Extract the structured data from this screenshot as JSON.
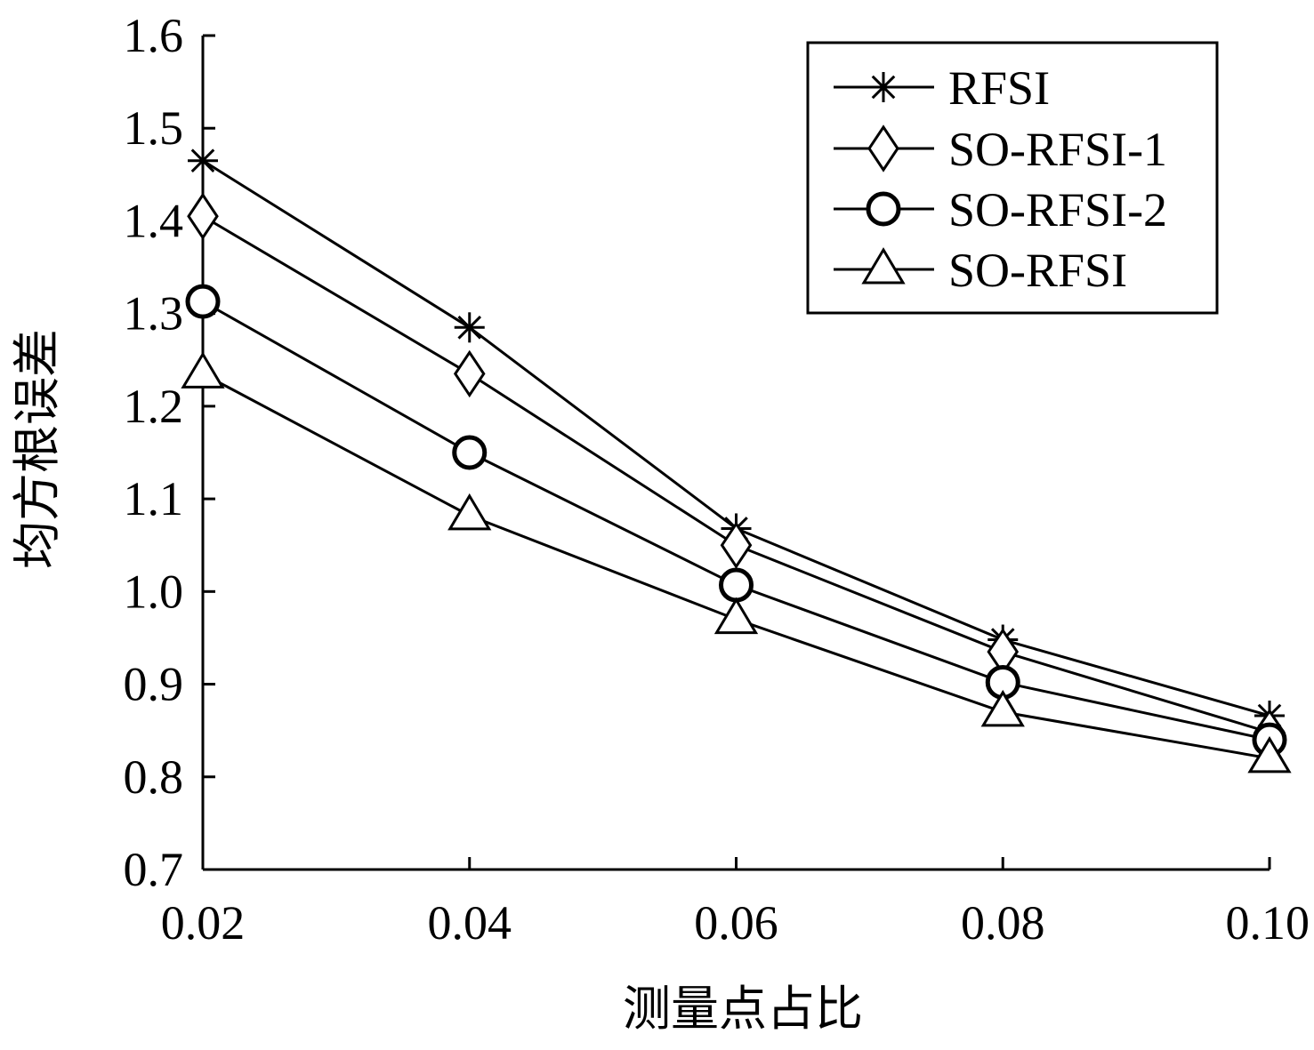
{
  "chart_data": {
    "type": "line",
    "title": "",
    "xlabel": "测量点占比",
    "ylabel": "均方根误差",
    "x": [
      0.02,
      0.04,
      0.06,
      0.08,
      0.1
    ],
    "x_tick_labels": [
      "0.02",
      "0.04",
      "0.06",
      "0.08",
      "0.10"
    ],
    "y_tick_labels": [
      "0.7",
      "0.8",
      "0.9",
      "1.0",
      "1.1",
      "1.2",
      "1.3",
      "1.4",
      "1.5",
      "1.6"
    ],
    "xlim": [
      0.02,
      0.1
    ],
    "ylim": [
      0.7,
      1.6
    ],
    "grid": false,
    "legend_position": "top-right",
    "series": [
      {
        "name": "RFSI",
        "marker": "asterisk",
        "values": [
          1.465,
          1.285,
          1.068,
          0.948,
          0.866
        ]
      },
      {
        "name": "SO-RFSI-1",
        "marker": "diamond",
        "values": [
          1.405,
          1.235,
          1.05,
          0.935,
          0.848
        ]
      },
      {
        "name": "SO-RFSI-2",
        "marker": "circle",
        "values": [
          1.313,
          1.15,
          1.007,
          0.902,
          0.84
        ]
      },
      {
        "name": "SO-RFSI",
        "marker": "triangle",
        "values": [
          1.235,
          1.082,
          0.97,
          0.87,
          0.82
        ]
      }
    ],
    "color": "#000000"
  }
}
